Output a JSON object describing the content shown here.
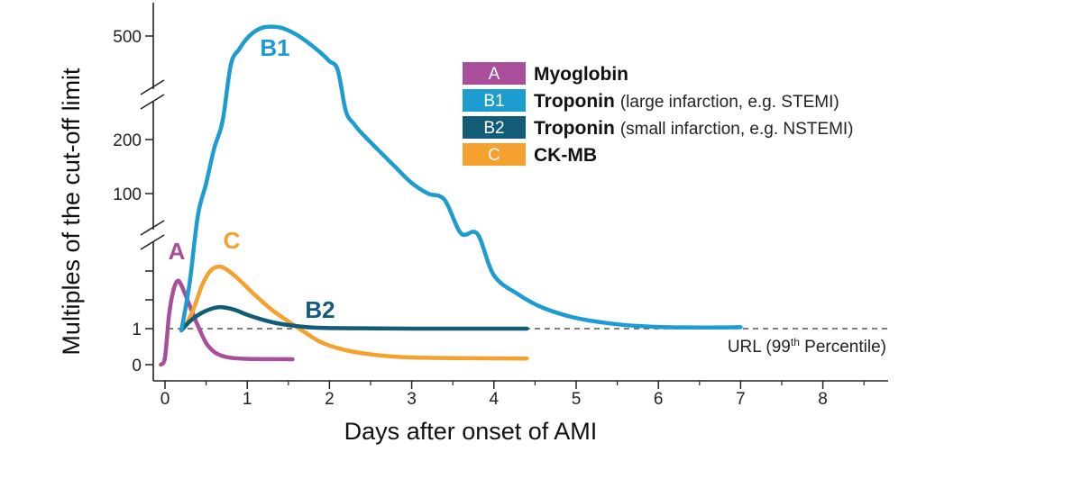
{
  "chart_data": {
    "type": "line",
    "xlabel": "Days after onset of AMI",
    "ylabel": "Multiples of the cut-off limit",
    "xlim": [
      -0.15,
      8.8
    ],
    "x_ticks": [
      "0",
      "1",
      "2",
      "3",
      "4",
      "5",
      "6",
      "7",
      "8"
    ],
    "y_ticks": [
      {
        "label": "0",
        "value": 0
      },
      {
        "label": "1",
        "value": 1
      },
      {
        "label": "",
        "value": 2
      },
      {
        "label": "",
        "value": 3
      },
      {
        "label": "100",
        "value": 100
      },
      {
        "label": "200",
        "value": 200
      },
      {
        "label": "500",
        "value": 500
      }
    ],
    "y_axis_breaks": [
      "between 3 and 100",
      "between 200 and 500"
    ],
    "reference_line": {
      "value": 1,
      "label_main": "URL (99",
      "label_sup": "th",
      "label_end": " Percentile)"
    },
    "series": [
      {
        "key": "A",
        "label": "A",
        "name": "Myoglobin",
        "note": "",
        "color": "#a84e9a",
        "points": [
          [
            -0.05,
            0
          ],
          [
            0,
            0.2
          ],
          [
            0.05,
            1.5
          ],
          [
            0.1,
            2.3
          ],
          [
            0.15,
            2.65
          ],
          [
            0.2,
            2.5
          ],
          [
            0.3,
            1.8
          ],
          [
            0.4,
            1.1
          ],
          [
            0.5,
            0.6
          ],
          [
            0.6,
            0.35
          ],
          [
            0.7,
            0.24
          ],
          [
            0.8,
            0.19
          ],
          [
            1.0,
            0.16
          ],
          [
            1.55,
            0.15
          ]
        ]
      },
      {
        "key": "C",
        "label": "C",
        "name": "CK-MB",
        "note": "",
        "color": "#f5a12f",
        "points": [
          [
            0.25,
            1.1
          ],
          [
            0.35,
            1.7
          ],
          [
            0.45,
            2.5
          ],
          [
            0.55,
            3.0
          ],
          [
            0.65,
            3.15
          ],
          [
            0.75,
            3.05
          ],
          [
            0.9,
            2.7
          ],
          [
            1.1,
            2.15
          ],
          [
            1.3,
            1.65
          ],
          [
            1.5,
            1.25
          ],
          [
            1.7,
            0.9
          ],
          [
            1.9,
            0.62
          ],
          [
            2.2,
            0.4
          ],
          [
            2.6,
            0.26
          ],
          [
            3.0,
            0.2
          ],
          [
            3.6,
            0.18
          ],
          [
            4.4,
            0.17
          ]
        ]
      },
      {
        "key": "B2",
        "label": "B2",
        "name": "Troponin",
        "note": "(small infarction, e.g. NSTEMI)",
        "color": "#125c78",
        "points": [
          [
            0.2,
            0.95
          ],
          [
            0.3,
            1.25
          ],
          [
            0.45,
            1.55
          ],
          [
            0.6,
            1.72
          ],
          [
            0.7,
            1.74
          ],
          [
            0.85,
            1.65
          ],
          [
            1.0,
            1.48
          ],
          [
            1.2,
            1.3
          ],
          [
            1.4,
            1.17
          ],
          [
            1.7,
            1.06
          ],
          [
            2.0,
            1.02
          ],
          [
            3.0,
            1.0
          ],
          [
            4.4,
            1.0
          ]
        ]
      },
      {
        "key": "B1",
        "label": "B1",
        "name": "Troponin",
        "note": "(large infarction, e.g. STEMI)",
        "color": "#1d9ccf",
        "points": [
          [
            0.2,
            0.95
          ],
          [
            0.3,
            2.6
          ],
          [
            0.4,
            48
          ],
          [
            0.5,
            120
          ],
          [
            0.6,
            185
          ],
          [
            0.7,
            245
          ],
          [
            0.8,
            340
          ],
          [
            0.9,
            425
          ],
          [
            1.0,
            488
          ],
          [
            1.1,
            528
          ],
          [
            1.2,
            548
          ],
          [
            1.3,
            552
          ],
          [
            1.4,
            547
          ],
          [
            1.5,
            531
          ],
          [
            1.6,
            507
          ],
          [
            1.7,
            477
          ],
          [
            1.8,
            442
          ],
          [
            1.9,
            404
          ],
          [
            2.0,
            360
          ],
          [
            2.1,
            312
          ],
          [
            2.2,
            270
          ],
          [
            2.3,
            238
          ],
          [
            2.4,
            214
          ],
          [
            2.6,
            180
          ],
          [
            2.8,
            150
          ],
          [
            3.0,
            121
          ],
          [
            3.2,
            100
          ],
          [
            3.4,
            85
          ],
          [
            3.6,
            5.0
          ],
          [
            3.8,
            3.55
          ],
          [
            4.0,
            2.85
          ],
          [
            4.3,
            2.18
          ],
          [
            4.6,
            1.72
          ],
          [
            5.0,
            1.37
          ],
          [
            5.5,
            1.15
          ],
          [
            6.0,
            1.06
          ],
          [
            6.5,
            1.04
          ],
          [
            7.0,
            1.05
          ]
        ]
      }
    ]
  }
}
